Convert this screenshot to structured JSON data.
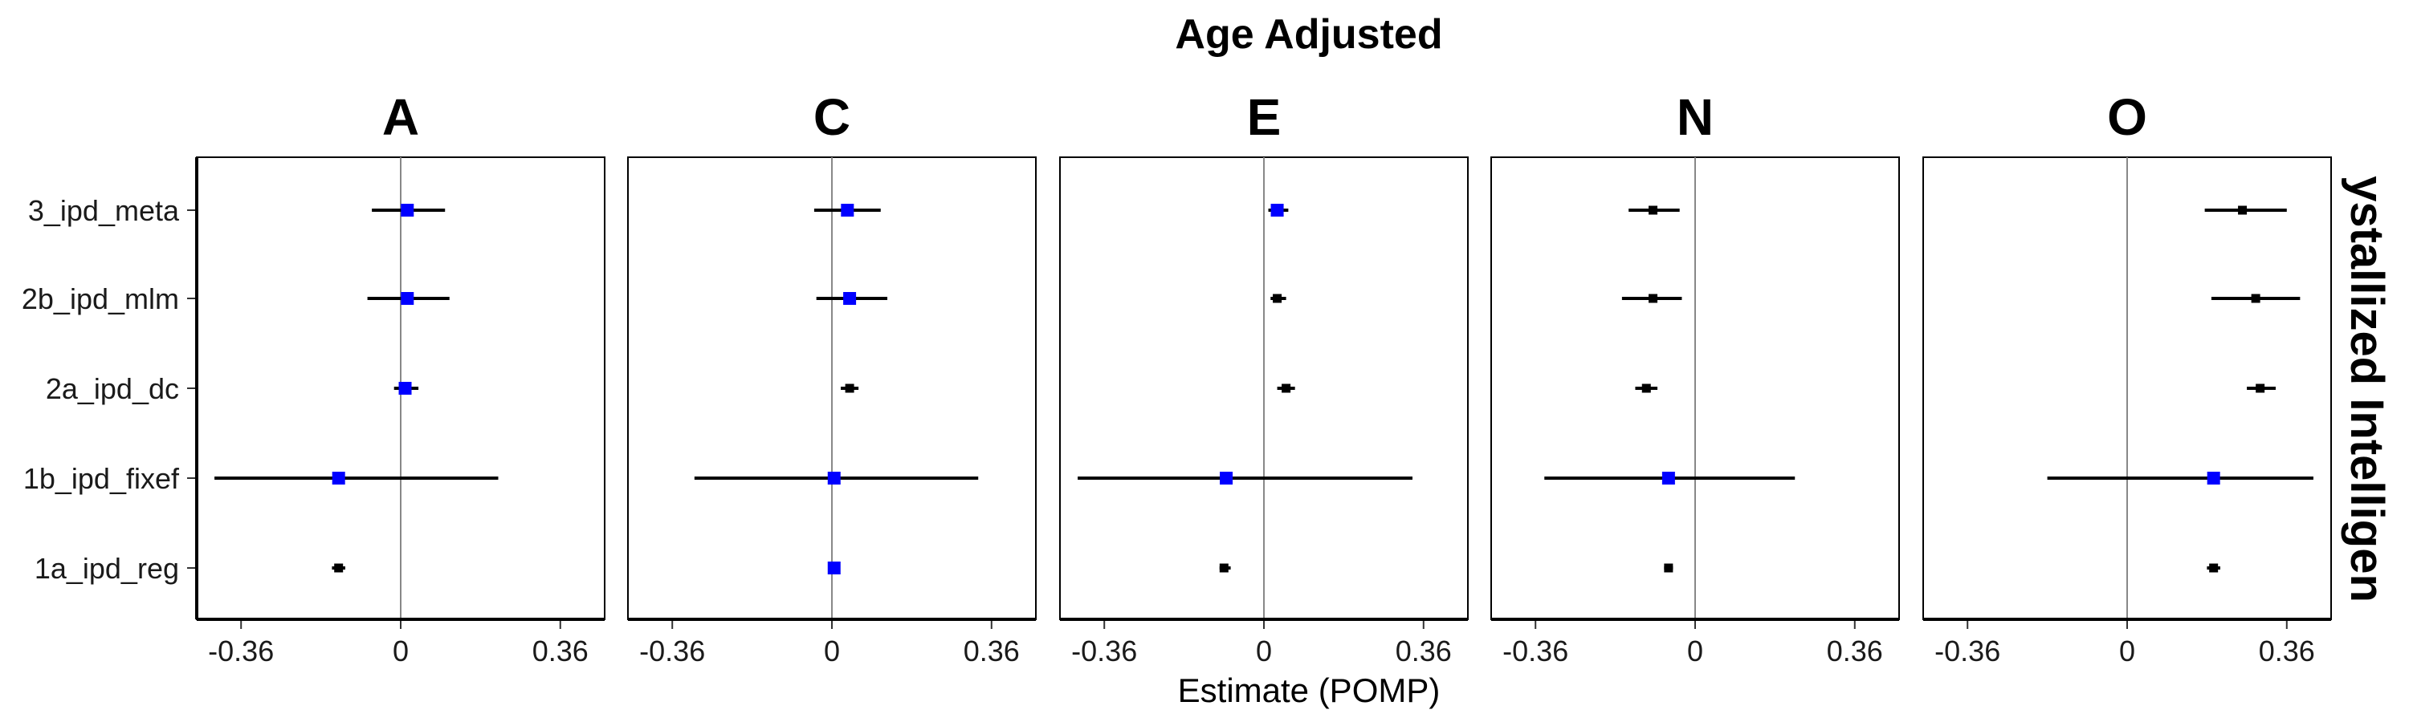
{
  "chart_data": {
    "type": "forest",
    "title": "Age Adjusted",
    "xlabel": "Estimate (POMP)",
    "right_strip_label": "ystallized Intelligen",
    "x_ticks": [
      -0.36,
      0,
      0.36
    ],
    "x_tick_labels": [
      "-0.36",
      "0",
      "0.36"
    ],
    "xlim": [
      -0.46,
      0.46
    ],
    "reference_line": 0,
    "categories": [
      "3_ipd_meta",
      "2b_ipd_mlm",
      "2a_ipd_dc",
      "1b_ipd_fixef",
      "1a_ipd_reg"
    ],
    "colors": {
      "significant": "#0000ff",
      "default": "#000000"
    },
    "facets": [
      {
        "name": "A",
        "points": [
          {
            "model": "3_ipd_meta",
            "est": 0.015,
            "lo": -0.065,
            "hi": 0.1,
            "highlight": true
          },
          {
            "model": "2b_ipd_mlm",
            "est": 0.015,
            "lo": -0.075,
            "hi": 0.11,
            "highlight": true
          },
          {
            "model": "2a_ipd_dc",
            "est": 0.01,
            "lo": -0.015,
            "hi": 0.04,
            "highlight": true
          },
          {
            "model": "1b_ipd_fixef",
            "est": -0.14,
            "lo": -0.42,
            "hi": 0.22,
            "highlight": true
          },
          {
            "model": "1a_ipd_reg",
            "est": -0.14,
            "lo": -0.155,
            "hi": -0.125,
            "highlight": false
          }
        ]
      },
      {
        "name": "C",
        "points": [
          {
            "model": "3_ipd_meta",
            "est": 0.035,
            "lo": -0.04,
            "hi": 0.11,
            "highlight": true
          },
          {
            "model": "2b_ipd_mlm",
            "est": 0.04,
            "lo": -0.035,
            "hi": 0.125,
            "highlight": true
          },
          {
            "model": "2a_ipd_dc",
            "est": 0.04,
            "lo": 0.02,
            "hi": 0.06,
            "highlight": false
          },
          {
            "model": "1b_ipd_fixef",
            "est": 0.005,
            "lo": -0.31,
            "hi": 0.33,
            "highlight": true
          },
          {
            "model": "1a_ipd_reg",
            "est": 0.005,
            "lo": -0.005,
            "hi": 0.015,
            "highlight": true
          }
        ]
      },
      {
        "name": "E",
        "points": [
          {
            "model": "3_ipd_meta",
            "est": 0.03,
            "lo": 0.01,
            "hi": 0.055,
            "highlight": true
          },
          {
            "model": "2b_ipd_mlm",
            "est": 0.03,
            "lo": 0.015,
            "hi": 0.05,
            "highlight": false
          },
          {
            "model": "2a_ipd_dc",
            "est": 0.05,
            "lo": 0.03,
            "hi": 0.07,
            "highlight": false
          },
          {
            "model": "1b_ipd_fixef",
            "est": -0.085,
            "lo": -0.42,
            "hi": 0.335,
            "highlight": true
          },
          {
            "model": "1a_ipd_reg",
            "est": -0.09,
            "lo": -0.1,
            "hi": -0.075,
            "highlight": false
          }
        ]
      },
      {
        "name": "N",
        "points": [
          {
            "model": "3_ipd_meta",
            "est": -0.095,
            "lo": -0.15,
            "hi": -0.035,
            "highlight": false
          },
          {
            "model": "2b_ipd_mlm",
            "est": -0.095,
            "lo": -0.165,
            "hi": -0.03,
            "highlight": false
          },
          {
            "model": "2a_ipd_dc",
            "est": -0.11,
            "lo": -0.135,
            "hi": -0.085,
            "highlight": false
          },
          {
            "model": "1b_ipd_fixef",
            "est": -0.06,
            "lo": -0.34,
            "hi": 0.225,
            "highlight": true
          },
          {
            "model": "1a_ipd_reg",
            "est": -0.06,
            "lo": -0.07,
            "hi": -0.05,
            "highlight": false
          }
        ]
      },
      {
        "name": "O",
        "points": [
          {
            "model": "3_ipd_meta",
            "est": 0.26,
            "lo": 0.175,
            "hi": 0.36,
            "highlight": false
          },
          {
            "model": "2b_ipd_mlm",
            "est": 0.29,
            "lo": 0.19,
            "hi": 0.39,
            "highlight": false
          },
          {
            "model": "2a_ipd_dc",
            "est": 0.3,
            "lo": 0.27,
            "hi": 0.335,
            "highlight": false
          },
          {
            "model": "1b_ipd_fixef",
            "est": 0.195,
            "lo": -0.18,
            "hi": 0.42,
            "highlight": true
          },
          {
            "model": "1a_ipd_reg",
            "est": 0.195,
            "lo": 0.18,
            "hi": 0.21,
            "highlight": false
          }
        ]
      }
    ]
  }
}
